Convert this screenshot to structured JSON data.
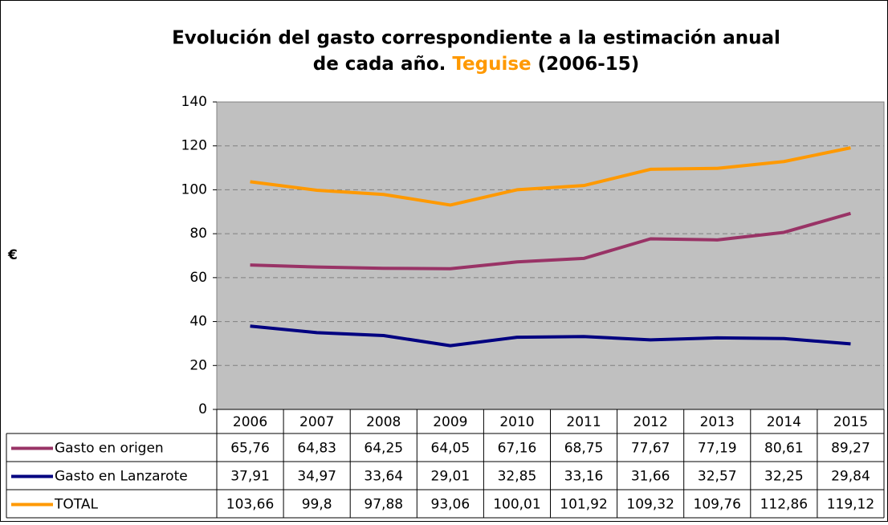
{
  "chart_data": {
    "type": "line",
    "title": [
      "Evolución del gasto correspondiente a la estimación anual",
      "de cada año.",
      "Teguise",
      "(2006-15)"
    ],
    "title_highlight_color": "#ff9900",
    "y_label": "€",
    "categories": [
      "2006",
      "2007",
      "2008",
      "2009",
      "2010",
      "2011",
      "2012",
      "2013",
      "2014",
      "2015"
    ],
    "series": [
      {
        "name": "Gasto en origen",
        "color": "#993366",
        "values": [
          65.76,
          64.83,
          64.25,
          64.05,
          67.16,
          68.75,
          77.67,
          77.19,
          80.61,
          89.27
        ],
        "value_labels": [
          "65,76",
          "64,83",
          "64,25",
          "64,05",
          "67,16",
          "68,75",
          "77,67",
          "77,19",
          "80,61",
          "89,27"
        ]
      },
      {
        "name": "Gasto en Lanzarote",
        "color": "#000080",
        "values": [
          37.91,
          34.97,
          33.64,
          29.01,
          32.85,
          33.16,
          31.66,
          32.57,
          32.25,
          29.84
        ],
        "value_labels": [
          "37,91",
          "34,97",
          "33,64",
          "29,01",
          "32,85",
          "33,16",
          "31,66",
          "32,57",
          "32,25",
          "29,84"
        ]
      },
      {
        "name": "TOTAL",
        "color": "#ff9900",
        "values": [
          103.66,
          99.8,
          97.88,
          93.06,
          100.01,
          101.92,
          109.32,
          109.76,
          112.86,
          119.12
        ],
        "value_labels": [
          "103,66",
          "99,8",
          "97,88",
          "93,06",
          "100,01",
          "101,92",
          "109,32",
          "109,76",
          "112,86",
          "119,12"
        ]
      }
    ],
    "ylim": [
      0,
      140
    ],
    "yticks": [
      0,
      20,
      40,
      60,
      80,
      100,
      120,
      140
    ],
    "grid": true,
    "plot_background": "#c0c0c0"
  }
}
